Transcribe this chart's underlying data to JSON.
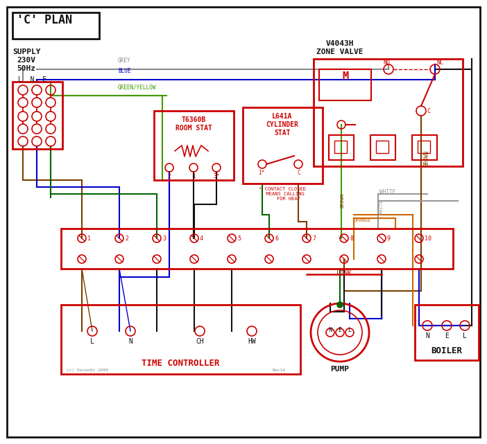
{
  "figsize": [
    7.02,
    6.41
  ],
  "dpi": 100,
  "bg_color": "#ffffff",
  "red": "#cc0000",
  "black": "#111111",
  "blue": "#0000cc",
  "green": "#006600",
  "brown": "#7b3f00",
  "grey": "#888888",
  "orange": "#cc6600",
  "white_wire": "#999999",
  "green_yellow": "#449900",
  "title": "'C' PLAN",
  "zone_valve_title": "V4043H\nZONE VALVE",
  "supply_text": "SUPPLY\n230V\n50Hz",
  "time_ctrl_text": "TIME CONTROLLER",
  "pump_text": "PUMP",
  "boiler_text": "BOILER",
  "room_stat_text": "T6360B\nROOM STAT",
  "cyl_stat_text": "L641A\nCYLINDER\nSTAT"
}
